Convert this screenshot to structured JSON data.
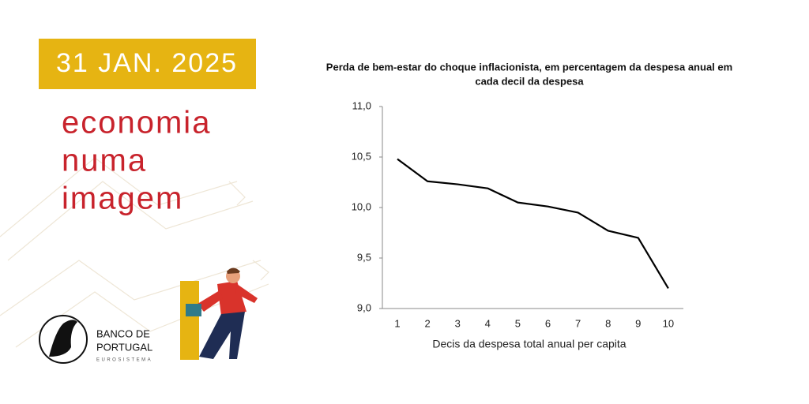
{
  "page": {
    "date": "31 JAN. 2025",
    "heading": [
      "economia",
      "numa",
      "imagem"
    ],
    "logo": {
      "name": [
        "BANCO DE",
        "PORTUGAL"
      ],
      "subtitle": "EUROSISTEMA"
    }
  },
  "chart_data": {
    "type": "line",
    "title": [
      "Perda de bem-estar do choque inflacionista, em percentagem da despesa anual em",
      "cada decil da despesa"
    ],
    "x_label": "Decis da despesa total anual per capita",
    "categories": [
      "1",
      "2",
      "3",
      "4",
      "5",
      "6",
      "7",
      "8",
      "9",
      "10"
    ],
    "values": [
      10.48,
      10.26,
      10.23,
      10.19,
      10.05,
      10.01,
      9.95,
      9.77,
      9.7,
      9.2
    ],
    "color": "#000000",
    "ylim": [
      9.0,
      11.0
    ],
    "yticks": [
      {
        "value": 9.0,
        "label": "9,0"
      },
      {
        "value": 9.5,
        "label": "9,5"
      },
      {
        "value": 10.0,
        "label": "10,0"
      },
      {
        "value": 10.5,
        "label": "10,5"
      },
      {
        "value": 11.0,
        "label": "11,0"
      }
    ],
    "grid": false
  }
}
